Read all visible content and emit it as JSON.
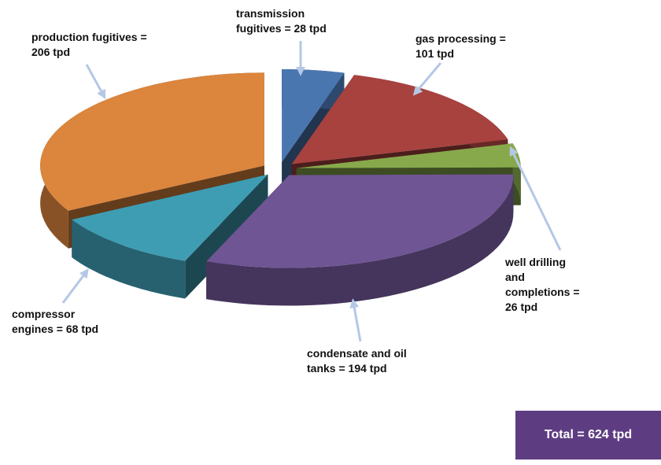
{
  "chart_data": {
    "type": "pie",
    "values": [
      28,
      101,
      26,
      194,
      68,
      206
    ],
    "value_labels": [
      "transmission fugitives = 28 tpd",
      "gas processing = 101 tpd",
      "well drilling and completions = 26 tpd",
      "condensate and oil tanks = 194 tpd",
      "compressor engines = 68 tpd",
      "production fugitives = 206 tpd"
    ],
    "colors": [
      "#4a76b0",
      "#a8423f",
      "#88a94b",
      "#6f5594",
      "#3f9db3",
      "#db853d"
    ],
    "annotation": "Total = 624 tpd"
  }
}
